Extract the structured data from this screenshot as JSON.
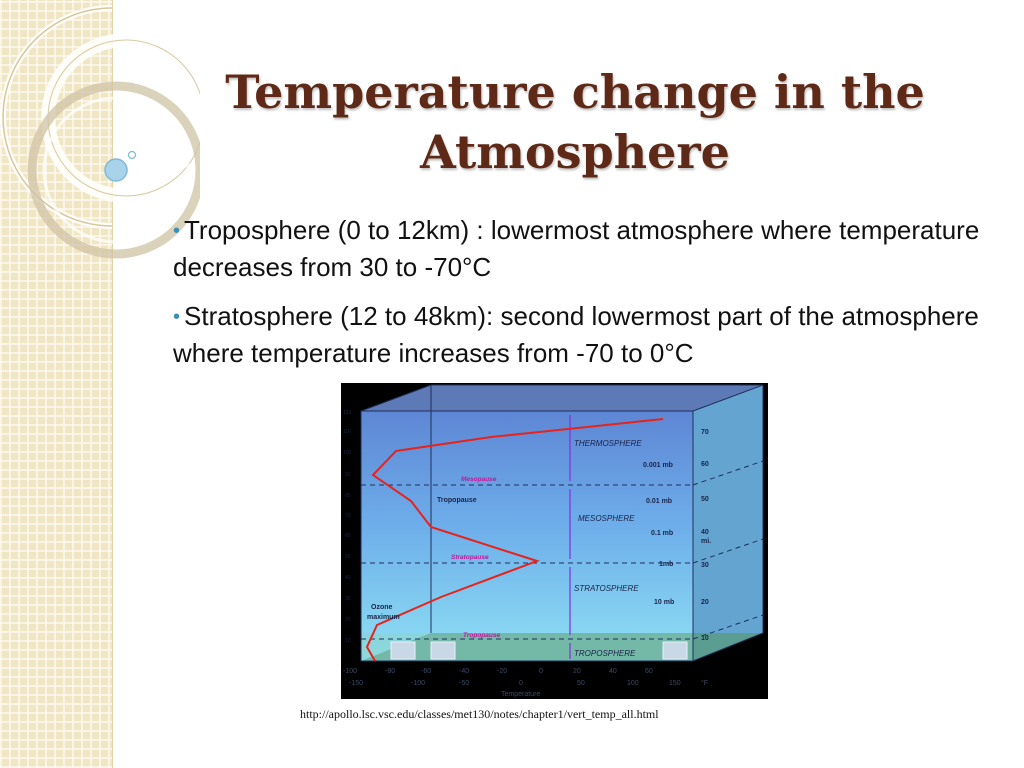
{
  "slide": {
    "title": "Temperature change in the Atmosphere",
    "bullets": [
      {
        "text": "Troposphere (0 to 12km) : lowermost atmosphere where temperature decreases from  30 to -70°C"
      },
      {
        "text": "Stratosphere (12 to 48km): second lowermost part of the atmosphere where temperature increases from -70 to 0°C"
      }
    ],
    "source_url": "http://apollo.lsc.vsc.edu/classes/met130/notes/chapter1/vert_temp_all.html"
  },
  "figure": {
    "layer_labels": [
      "THERMOSPHERE",
      "MESOSPHERE",
      "STRATOSPHERE",
      "TROPOSPHERE"
    ],
    "boundary_labels": [
      "Mesopause",
      "Stratopause",
      "Tropopause"
    ],
    "pressure_labels": [
      "0.001 mb",
      "0.01 mb",
      "0.1 mb",
      "1mb",
      "10 mb"
    ],
    "side_labels": [
      "Tropopause",
      "Ozone",
      "maximum"
    ],
    "miles_ticks": [
      "70",
      "60",
      "50",
      "40",
      "30",
      "20",
      "10"
    ],
    "miles_unit": "mi.",
    "km_ticks": [
      "120",
      "110",
      "100",
      "90",
      "80",
      "70",
      "60",
      "50",
      "40",
      "30",
      "20",
      "10"
    ],
    "celsius_ticks": [
      "-100",
      "-80",
      "-60",
      "-40",
      "-20",
      "0",
      "20",
      "40",
      "60"
    ],
    "fahrenheit_ticks": [
      "-150",
      "-100",
      "-50",
      "0",
      "50",
      "100",
      "150"
    ],
    "fahrenheit_unit": "°F",
    "x_axis_label": "Temperature",
    "colors": {
      "title": "#5e2a17",
      "bullet_dot": "#3d8fb8",
      "profile_line": "#e8221c",
      "boundary_label": "#c0189a"
    }
  }
}
